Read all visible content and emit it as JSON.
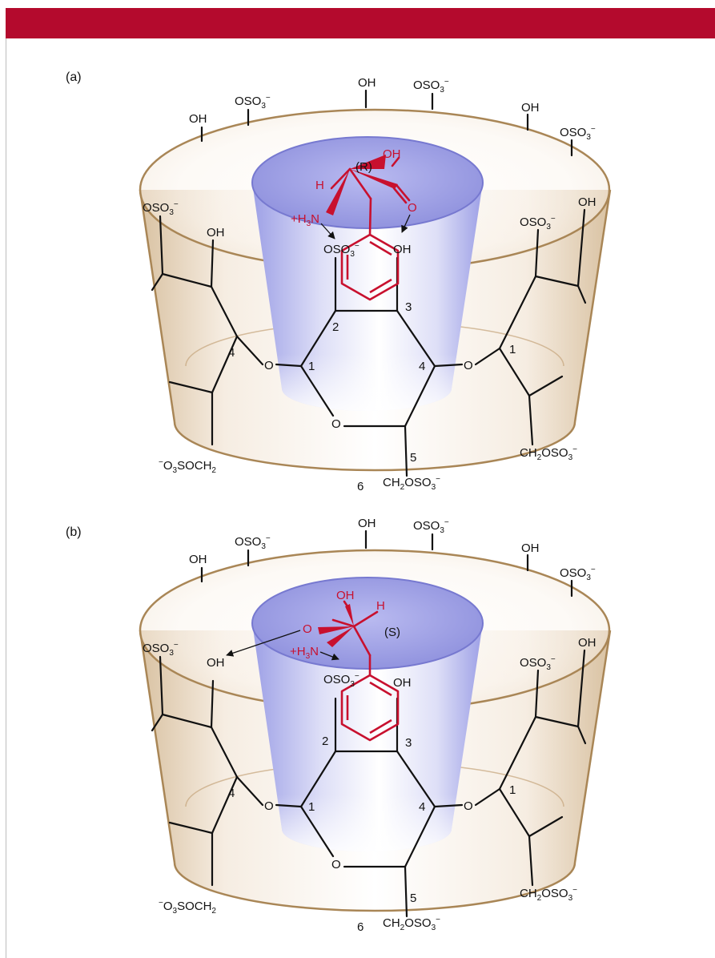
{
  "colors": {
    "header_bar": "#b40a2d",
    "molecule": "#c8102e",
    "cup_outer": "#b8946a",
    "cup_inner": "#8d8fe0"
  },
  "panels": [
    {
      "label": "(a)",
      "chirality": "(R)",
      "rim_labels": {
        "oh_top": "OH",
        "oso3_top": "OSO",
        "oh_left": "OH",
        "oso3_left": "OSO",
        "oh_right": "OH",
        "oso3_right": "OSO"
      },
      "side_labels": {
        "oso3_l": "OSO",
        "oh_l": "OH",
        "oh_r": "OH",
        "oso3_r": "OSO"
      },
      "inner_labels": {
        "oso3": "OSO",
        "oh": "OH"
      },
      "ring_numbers": {
        "n2": "2",
        "n3": "3",
        "n4l": "4",
        "n1l": "1",
        "n4r": "4",
        "n1r": "1",
        "n5": "5",
        "n6": "6"
      },
      "oxygens": {
        "o_left": "O",
        "o_right": "O",
        "o_ring": "O"
      },
      "bottom_labels": {
        "left": "O",
        "left_tail": "SOCH",
        "right": "CH",
        "right_tail": "OSO",
        "center": "CH",
        "center_tail": "OSO"
      },
      "guest": {
        "oh": "OH",
        "h": "H",
        "h3n": "+H",
        "n": "N",
        "o": "O"
      }
    },
    {
      "label": "(b)",
      "chirality": "(S)",
      "rim_labels": {
        "oh_top": "OH",
        "oso3_top": "OSO",
        "oh_left": "OH",
        "oso3_left": "OSO",
        "oh_right": "OH",
        "oso3_right": "OSO"
      },
      "side_labels": {
        "oso3_l": "OSO",
        "oh_l": "OH",
        "oh_r": "OH",
        "oso3_r": "OSO"
      },
      "inner_labels": {
        "oso3": "OSO",
        "oh": "OH"
      },
      "ring_numbers": {
        "n2": "2",
        "n3": "3",
        "n4l": "4",
        "n1l": "1",
        "n4r": "4",
        "n1r": "1",
        "n5": "5",
        "n6": "6"
      },
      "oxygens": {
        "o_left": "O",
        "o_right": "O",
        "o_ring": "O"
      },
      "bottom_labels": {
        "left": "O",
        "left_tail": "SOCH",
        "right": "CH",
        "right_tail": "OSO",
        "center": "CH",
        "center_tail": "OSO"
      },
      "guest": {
        "oh": "OH",
        "h": "H",
        "h3n": "+H",
        "n": "N",
        "o": "O"
      }
    }
  ]
}
